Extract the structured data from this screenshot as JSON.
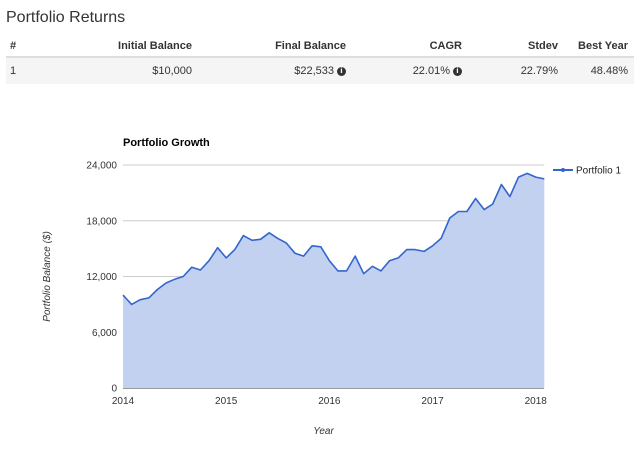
{
  "page_title": "Portfolio Returns",
  "table": {
    "headers": [
      "#",
      "Initial Balance",
      "Final Balance",
      "CAGR",
      "Stdev",
      "Best Year"
    ],
    "rows": [
      {
        "num": "1",
        "initial_balance": "$10,000",
        "final_balance": "$22,533",
        "cagr": "22.01%",
        "stdev": "22.79%",
        "best_year": "48.48%"
      }
    ]
  },
  "icons": {
    "info": "info-circle-icon"
  },
  "colors": {
    "series_line": "#3366cc",
    "series_fill": "#c3d1f0",
    "grid": "#cccccc"
  },
  "chart_data": {
    "type": "area",
    "title": "Portfolio Growth",
    "xlabel": "Year",
    "ylabel": "Portfolio Balance ($)",
    "x_ticks": [
      "2014",
      "2015",
      "2016",
      "2017",
      "2018"
    ],
    "y_ticks": [
      "0",
      "6,000",
      "12,000",
      "18,000",
      "24,000"
    ],
    "xlim": [
      2014.0,
      2018.08
    ],
    "ylim": [
      0,
      24000
    ],
    "legend": "right",
    "grid": true,
    "series": [
      {
        "name": "Portfolio 1",
        "x": [
          2014.0,
          2014.083,
          2014.167,
          2014.25,
          2014.333,
          2014.417,
          2014.5,
          2014.583,
          2014.667,
          2014.75,
          2014.833,
          2014.917,
          2015.0,
          2015.083,
          2015.167,
          2015.25,
          2015.333,
          2015.417,
          2015.5,
          2015.583,
          2015.667,
          2015.75,
          2015.833,
          2015.917,
          2016.0,
          2016.083,
          2016.167,
          2016.25,
          2016.333,
          2016.417,
          2016.5,
          2016.583,
          2016.667,
          2016.75,
          2016.833,
          2016.917,
          2017.0,
          2017.083,
          2017.167,
          2017.25,
          2017.333,
          2017.417,
          2017.5,
          2017.583,
          2017.667,
          2017.75,
          2017.833,
          2017.917,
          2018.0,
          2018.083
        ],
        "values": [
          10000,
          9000,
          9500,
          9700,
          10600,
          11300,
          11700,
          12000,
          13000,
          12700,
          13700,
          15100,
          14000,
          14900,
          16400,
          15900,
          16000,
          16700,
          16100,
          15600,
          14500,
          14200,
          15300,
          15200,
          13700,
          12600,
          12600,
          14200,
          12300,
          13100,
          12600,
          13700,
          14000,
          14900,
          14900,
          14700,
          15300,
          16100,
          18300,
          19000,
          19000,
          20400,
          19200,
          19800,
          21900,
          20600,
          22700,
          23100,
          22700,
          22500
        ]
      }
    ]
  }
}
